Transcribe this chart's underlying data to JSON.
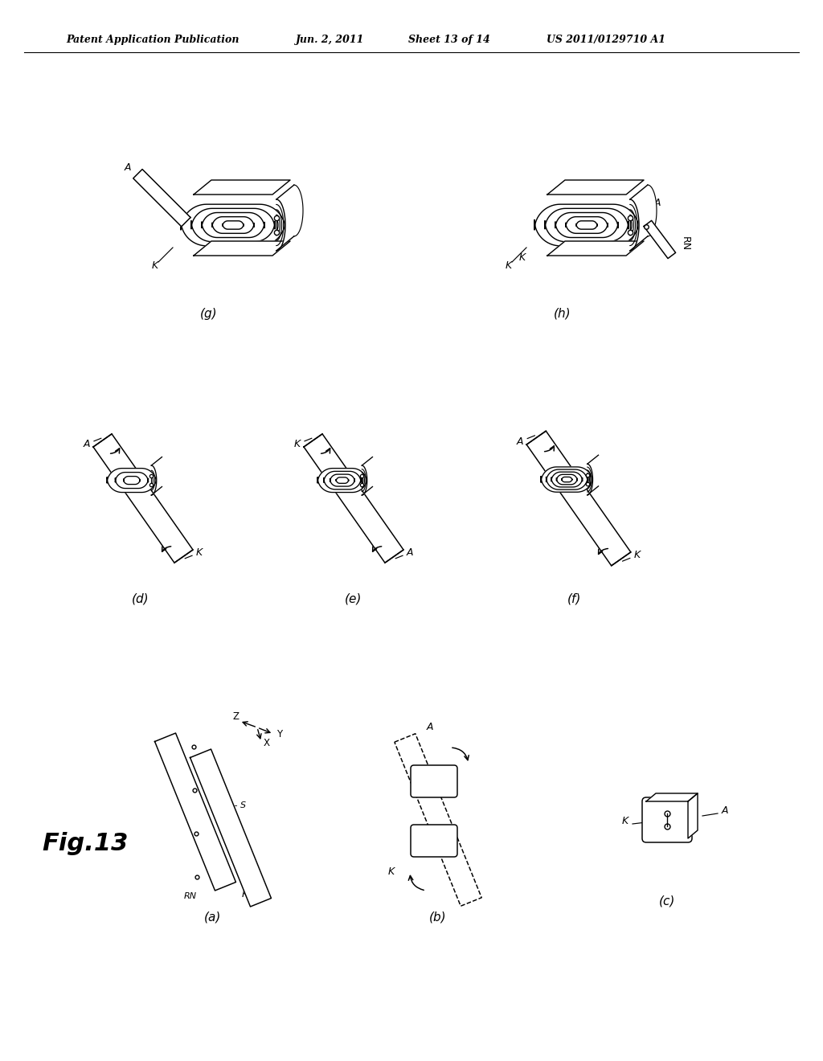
{
  "background_color": "#ffffff",
  "header_text": "Patent Application Publication",
  "header_date": "Jun. 2, 2011",
  "header_sheet": "Sheet 13 of 14",
  "header_patent": "US 2011/0129710 A1",
  "fig_label": "Fig.13",
  "line_color": "#000000",
  "line_width": 1.2
}
